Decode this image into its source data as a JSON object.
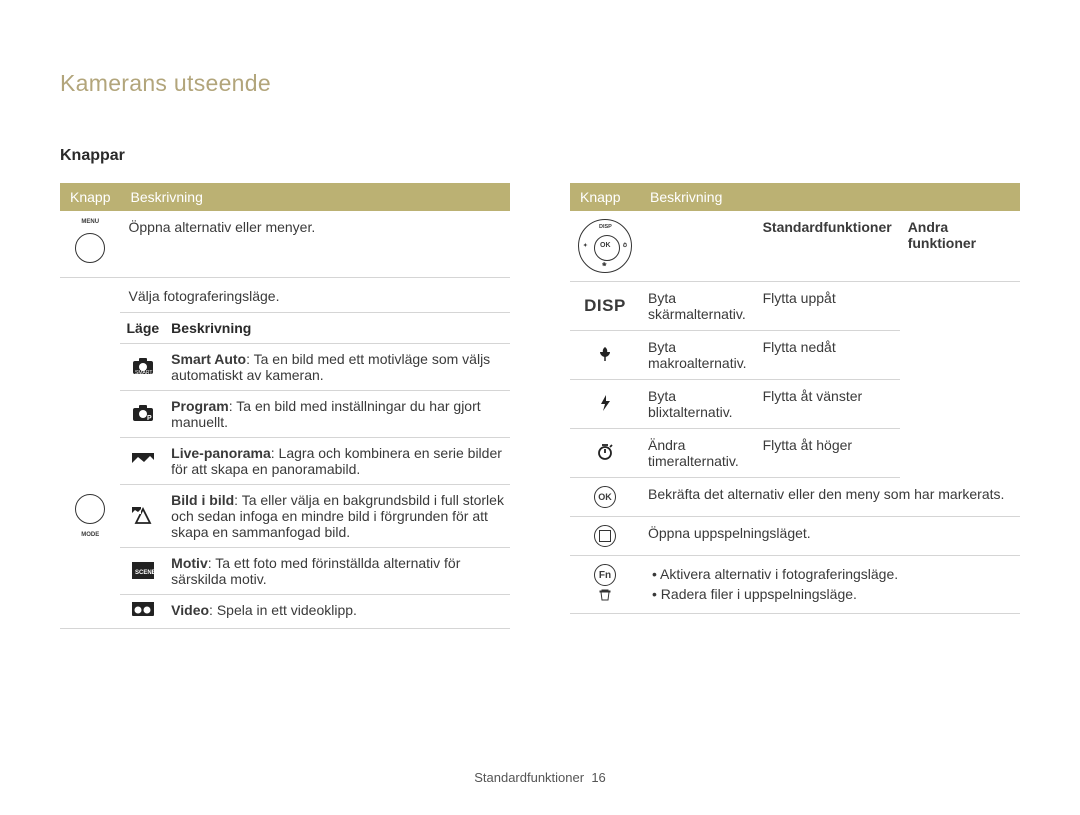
{
  "page": {
    "title": "Kamerans utseende",
    "section": "Knappar",
    "footer_label": "Standardfunktioner",
    "footer_page": "16"
  },
  "left_table": {
    "headers": {
      "knapp": "Knapp",
      "beskrivning": "Beskrivning"
    },
    "menu_row": {
      "icon_label": "MENU",
      "desc": "Öppna alternativ eller menyer."
    },
    "mode_section": {
      "icon_label": "MODE",
      "title": "Välja fotograferingsläge.",
      "inner_headers": {
        "lage": "Läge",
        "beskrivning": "Beskrivning"
      },
      "rows": [
        {
          "icon": "smart-auto-icon",
          "bold": "Smart Auto",
          "text": ": Ta en bild med ett motivläge som väljs automatiskt av kameran."
        },
        {
          "icon": "program-icon",
          "bold": "Program",
          "text": ": Ta en bild med inställningar du har gjort manuellt."
        },
        {
          "icon": "panorama-icon",
          "bold": "Live-panorama",
          "text": ": Lagra och kombinera en serie bilder för att skapa en panoramabild."
        },
        {
          "icon": "pip-icon",
          "bold": "Bild i bild",
          "text": ": Ta eller välja en bakgrundsbild i full storlek och sedan infoga en mindre bild i förgrunden för att skapa en sammanfogad bild."
        },
        {
          "icon": "scene-icon",
          "bold": "Motiv",
          "text": ": Ta ett foto med förinställda alternativ för särskilda motiv."
        },
        {
          "icon": "video-icon",
          "bold": "Video",
          "text": ": Spela in ett videoklipp."
        }
      ]
    }
  },
  "right_table": {
    "headers": {
      "knapp": "Knapp",
      "beskrivning": "Beskrivning"
    },
    "dpad": {
      "disp_label": "DISP",
      "inner_headers": {
        "standard": "Standardfunktioner",
        "andra": "Andra funktioner"
      },
      "rows": [
        {
          "icon": "disp-icon",
          "standard": "Byta skärmalternativ.",
          "andra": "Flytta uppåt"
        },
        {
          "icon": "macro-icon",
          "standard": "Byta makroalternativ.",
          "andra": "Flytta nedåt"
        },
        {
          "icon": "flash-icon",
          "standard": "Byta blixtalternativ.",
          "andra": "Flytta åt vänster"
        },
        {
          "icon": "timer-icon",
          "standard": "Ändra timeralternativ.",
          "andra": "Flytta åt höger"
        }
      ]
    },
    "ok_row": {
      "label": "OK",
      "desc": "Bekräfta det alternativ eller den meny som har markerats."
    },
    "play_row": {
      "desc": "Öppna uppspelningsläget."
    },
    "fn_row": {
      "label": "Fn",
      "items": [
        "Aktivera alternativ i fotograferingsläge.",
        "Radera filer i uppspelningsläge."
      ]
    }
  },
  "colors": {
    "header_bg": "#bbb173",
    "title_color": "#b2a57b",
    "border": "#d5d5d5"
  }
}
